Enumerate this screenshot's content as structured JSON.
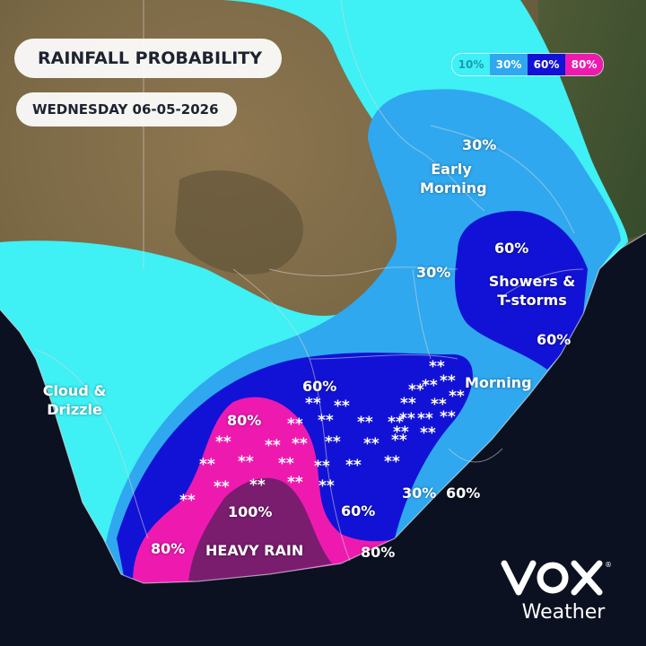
{
  "title": "RAINFALL PROBABILITY",
  "date": "WEDNESDAY 06-05-2026",
  "legend": [
    {
      "label": "10%",
      "color": "#3ff0f5",
      "text_color": "#1a9bb0"
    },
    {
      "label": "30%",
      "color": "#2fa8ef",
      "text_color": "#ffffff"
    },
    {
      "label": "60%",
      "color": "#1212d6",
      "text_color": "#ffffff"
    },
    {
      "label": "80%",
      "color": "#ee1ab0",
      "text_color": "#ffffff"
    }
  ],
  "zone_colors": {
    "p10": "#3ff0f5",
    "p30": "#2fa8ef",
    "p60": "#1212d6",
    "p80": "#ee1ab0",
    "p100": "#7a1d6f",
    "ocean": "#0b1120",
    "land_light": "#8a7650",
    "land_dark": "#4f4a33",
    "land_green": "#3e5a30"
  },
  "labels": {
    "early_morning_pct": "30%",
    "early_morning": "Early Morning",
    "north_30": "30%",
    "east_60_top": "60%",
    "showers": "Showers & T-storms",
    "east_60_coast": "60%",
    "morning": "Morning",
    "cloud_drizzle": "Cloud & Drizzle",
    "central_60": "60%",
    "west_80": "80%",
    "hundred": "100%",
    "heavy_rain": "HEAVY RAIN",
    "south_60": "60%",
    "east_30": "30%",
    "east_60_low": "60%",
    "sw_80": "80%",
    "se_80": "80%"
  },
  "snow_symbol": "**",
  "brand": {
    "word": "Weather",
    "mark": "VOX",
    "registered": "®"
  }
}
